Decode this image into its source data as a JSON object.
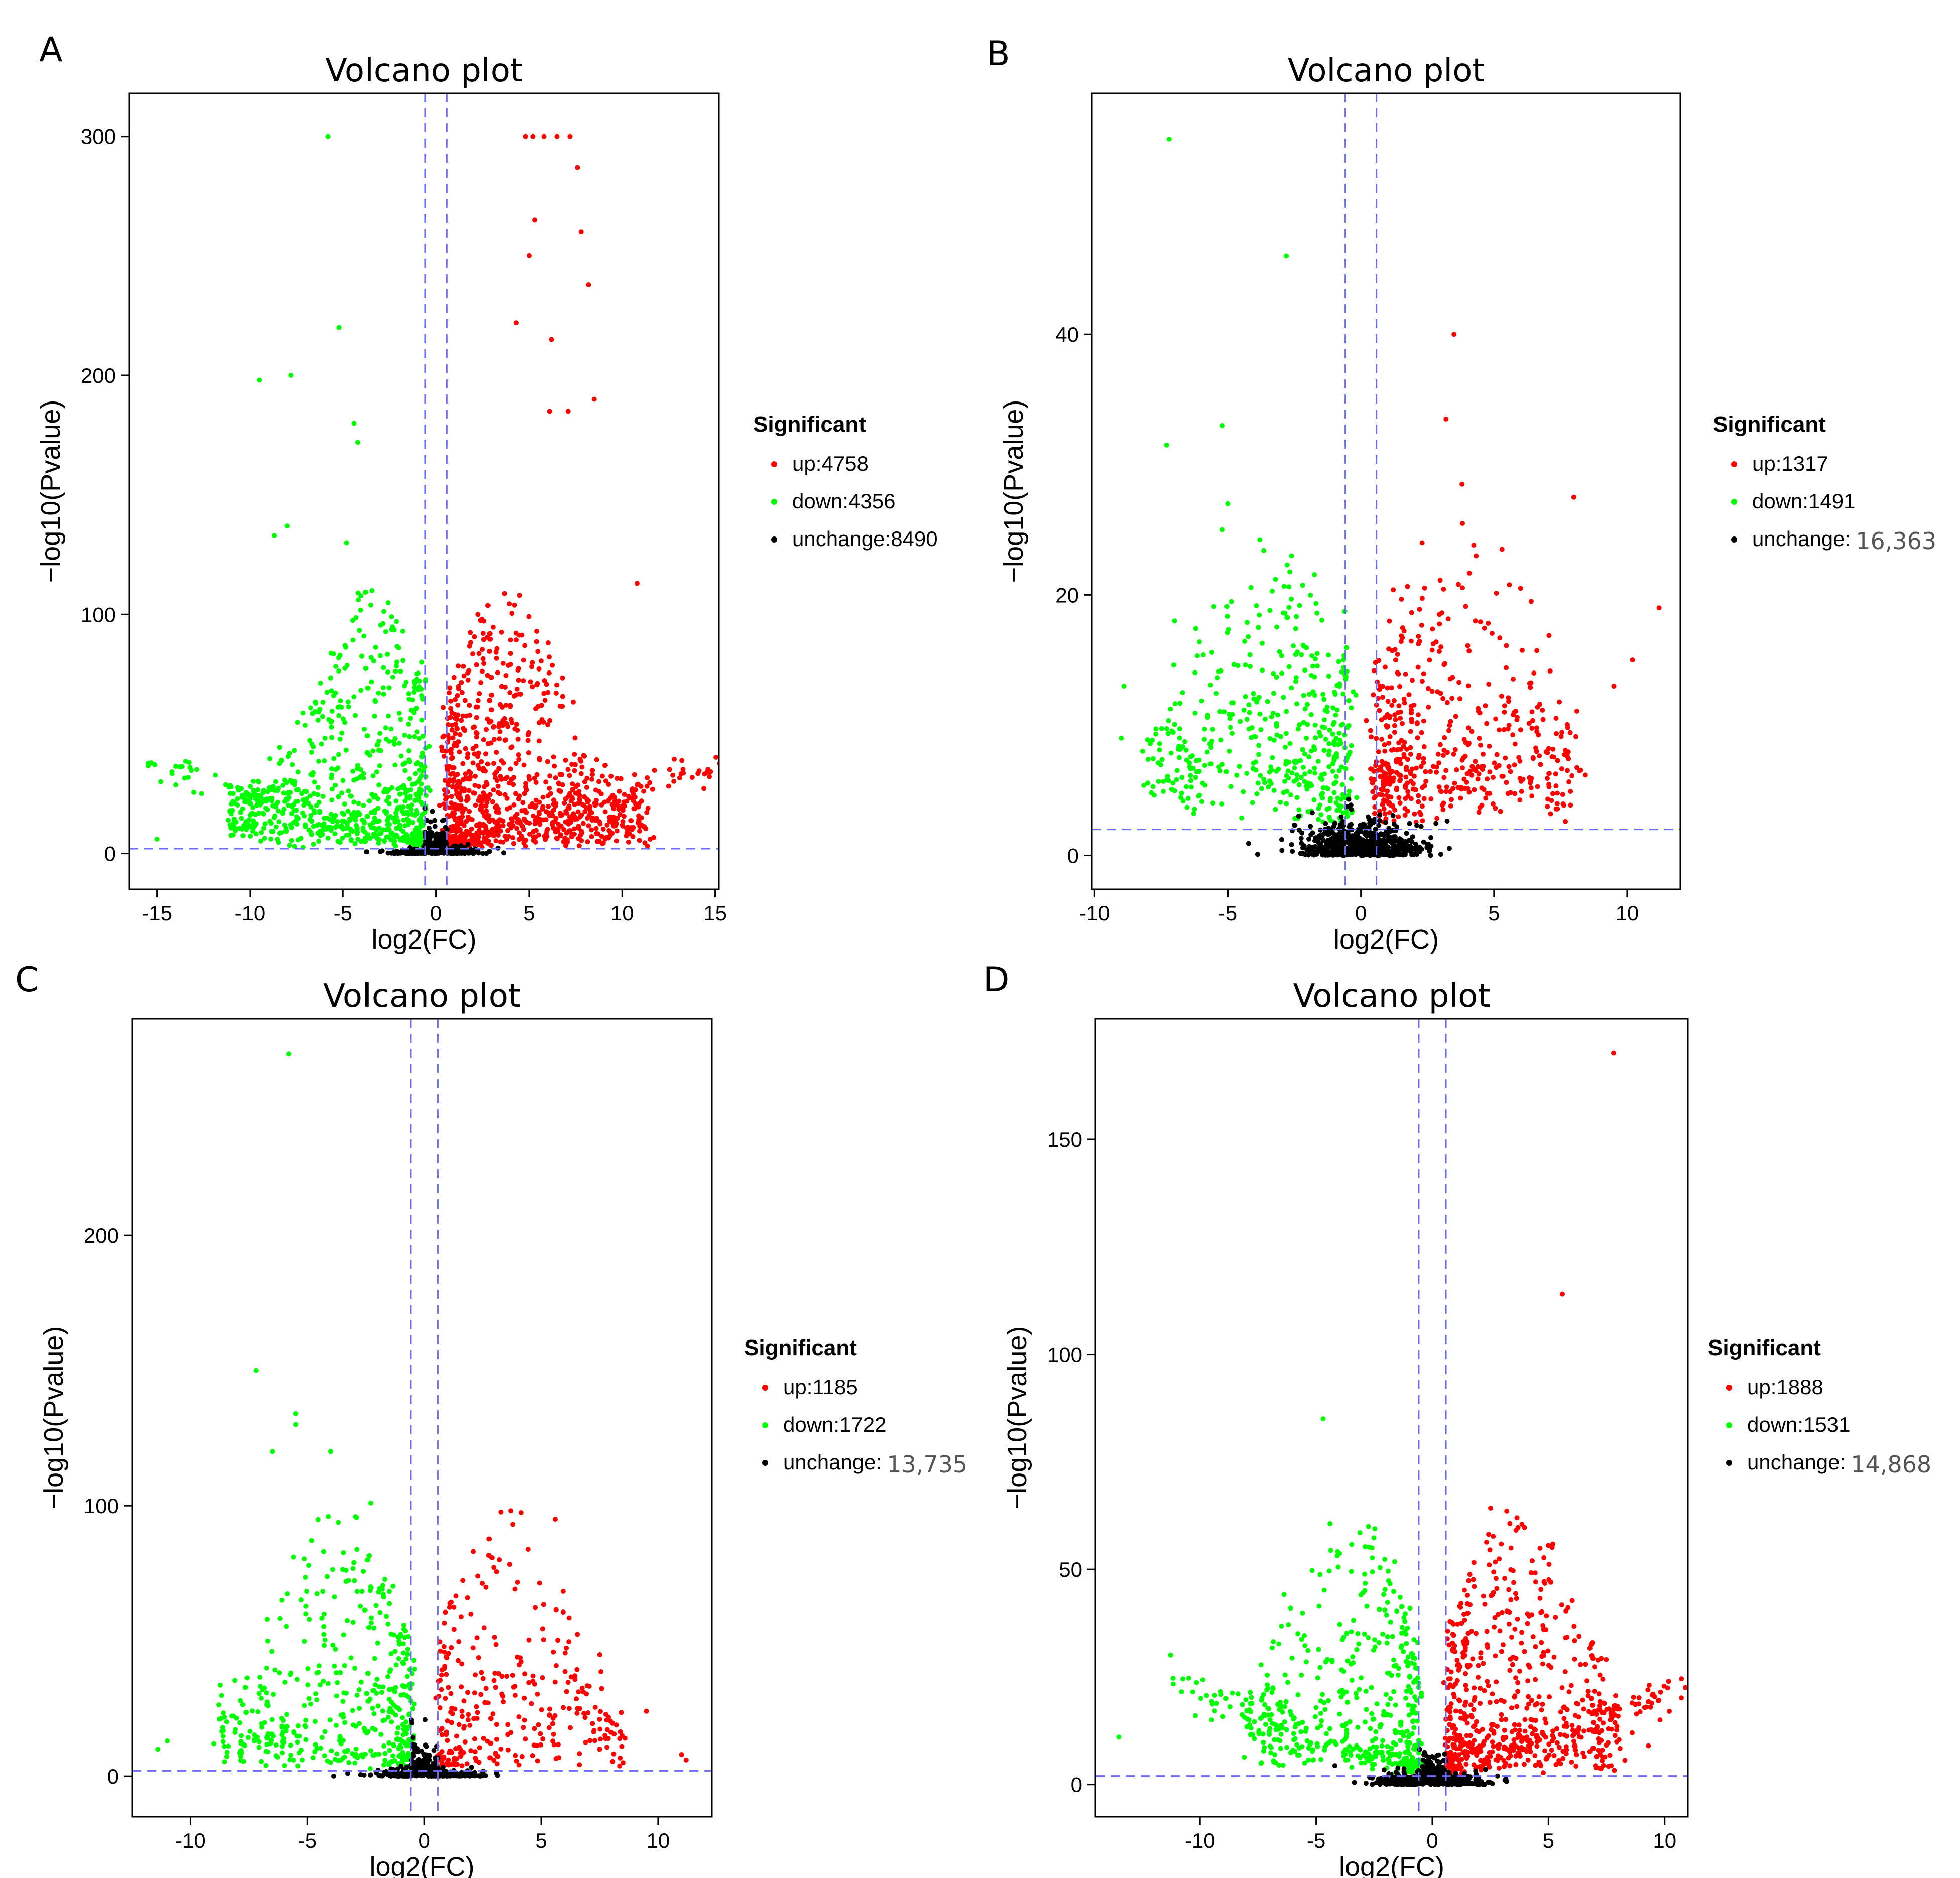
{
  "colors": {
    "up": "#ff0000",
    "down": "#00ff00",
    "unchange": "#000000",
    "threshold": "#6b6bff"
  },
  "chart_data": [
    {
      "type": "scatter",
      "panel": "A",
      "title": "Volcano plot",
      "xlabel": "log2(FC)",
      "ylabel": "−log10(Pvalue)",
      "xlim": [
        -16.5,
        15.2
      ],
      "ylim": [
        -15,
        318
      ],
      "xticks": [
        -15,
        -10,
        -5,
        0,
        5,
        10,
        15
      ],
      "yticks": [
        0,
        100,
        200,
        300
      ],
      "vlines": [
        -0.585,
        0.585
      ],
      "hline": 2,
      "legend": {
        "title": "Significant",
        "position": "right",
        "entries": [
          {
            "key": "up",
            "prefix": "up:",
            "count": "4758"
          },
          {
            "key": "down",
            "prefix": "down:",
            "count": "4356"
          },
          {
            "key": "unchange",
            "prefix": "unchange:",
            "count": "8490"
          }
        ]
      },
      "shape": {
        "xMax": 15,
        "yMax": 300,
        "upCount": 900,
        "downCount": 700,
        "unCount": 450,
        "arms": true,
        "noise": [
          1,
          0.25
        ],
        "outliers_up": [
          [
            4.8,
            300
          ],
          [
            5.2,
            300
          ],
          [
            5.8,
            300
          ],
          [
            6.5,
            300
          ],
          [
            7.2,
            300
          ],
          [
            7.6,
            287
          ],
          [
            7.8,
            260
          ],
          [
            5.3,
            265
          ],
          [
            5.0,
            250
          ],
          [
            4.3,
            222
          ],
          [
            6.2,
            215
          ],
          [
            8.2,
            238
          ],
          [
            8.5,
            190
          ],
          [
            7.1,
            185
          ],
          [
            6.1,
            185
          ],
          [
            10.8,
            113
          ]
        ],
        "outliers_down": [
          [
            -5.8,
            300
          ],
          [
            -5.2,
            220
          ],
          [
            -9.5,
            198
          ],
          [
            -7.8,
            200
          ],
          [
            -4.4,
            180
          ],
          [
            -4.2,
            172
          ],
          [
            -8.0,
            137
          ],
          [
            -8.7,
            133
          ],
          [
            -4.8,
            130
          ],
          [
            -14.8,
            30
          ],
          [
            -15.0,
            6
          ],
          [
            -12.6,
            25
          ]
        ]
      }
    },
    {
      "type": "scatter",
      "panel": "B",
      "title": "Volcano plot",
      "xlabel": "log2(FC)",
      "ylabel": "−log10(Pvalue)",
      "xlim": [
        -10.1,
        12.0
      ],
      "ylim": [
        -2.6,
        58.5
      ],
      "xticks": [
        -10,
        -5,
        0,
        5,
        10
      ],
      "yticks": [
        0,
        20,
        40
      ],
      "vlines": [
        -0.585,
        0.585
      ],
      "hline": 2,
      "legend": {
        "title": "Significant",
        "position": "right",
        "entries": [
          {
            "key": "up",
            "prefix": "up:",
            "count": "1317"
          },
          {
            "key": "down",
            "prefix": "down:",
            "count": "1491"
          },
          {
            "key": "unchange",
            "prefix": "unchange:",
            "count": "16,363"
          }
        ]
      },
      "shape": {
        "xMax": 10.5,
        "yMax": 55,
        "upCount": 500,
        "downCount": 450,
        "unCount": 700,
        "arms": false,
        "noise": [
          2.5,
          0.25
        ],
        "outliers_up": [
          [
            3.5,
            40
          ],
          [
            3.2,
            33.5
          ],
          [
            3.8,
            28.5
          ],
          [
            8.0,
            27.5
          ],
          [
            5.3,
            23.5
          ],
          [
            6.0,
            20.5
          ],
          [
            6.4,
            19.5
          ],
          [
            11.2,
            19
          ],
          [
            9.5,
            13
          ],
          [
            10.2,
            15
          ],
          [
            4.3,
            18
          ],
          [
            6.5,
            14
          ],
          [
            2.3,
            24
          ]
        ],
        "outliers_down": [
          [
            -7.2,
            55
          ],
          [
            -2.8,
            46
          ],
          [
            -5.2,
            33
          ],
          [
            -7.3,
            31.5
          ],
          [
            -5.0,
            27
          ],
          [
            -5.2,
            25
          ],
          [
            -2.6,
            23
          ],
          [
            -8.9,
            13
          ],
          [
            -9.0,
            9
          ],
          [
            -8.2,
            8
          ],
          [
            -7.0,
            18
          ],
          [
            -6.7,
            12.5
          ]
        ]
      }
    },
    {
      "type": "scatter",
      "panel": "C",
      "title": "Volcano plot",
      "xlabel": "log2(FC)",
      "ylabel": "−log10(Pvalue)",
      "xlim": [
        -12.5,
        12.3
      ],
      "ylim": [
        -15,
        280
      ],
      "xticks": [
        -10,
        -5,
        0,
        5,
        10
      ],
      "yticks": [
        0,
        100,
        200
      ],
      "vlines": [
        -0.585,
        0.585
      ],
      "hline": 2,
      "legend": {
        "title": "Significant",
        "position": "right",
        "entries": [
          {
            "key": "up",
            "prefix": "up:",
            "count": "1185"
          },
          {
            "key": "down",
            "prefix": "down:",
            "count": "1722"
          },
          {
            "key": "unchange",
            "prefix": "unchange:",
            "count": "13,735"
          }
        ]
      },
      "shape": {
        "xMax": 11.5,
        "yMax": 265,
        "upCount": 300,
        "downCount": 450,
        "unCount": 400,
        "arms": false,
        "noise": [
          2,
          0.12
        ],
        "outliers_up": [
          [
            5.6,
            95
          ],
          [
            3.2,
            80
          ],
          [
            2.0,
            60
          ],
          [
            9.5,
            24
          ],
          [
            11.0,
            8
          ],
          [
            11.2,
            6
          ],
          [
            6.2,
            25
          ],
          [
            7.5,
            10
          ],
          [
            8.5,
            5
          ]
        ],
        "outliers_down": [
          [
            -5.8,
            267
          ],
          [
            -7.2,
            150
          ],
          [
            -5.5,
            134
          ],
          [
            -5.5,
            130
          ],
          [
            -6.5,
            120
          ],
          [
            -4.0,
            120
          ],
          [
            -2.3,
            101
          ],
          [
            -4.1,
            96
          ],
          [
            -4.3,
            83
          ],
          [
            -5.6,
            81
          ],
          [
            -3.0,
            79
          ],
          [
            -6.7,
            50
          ],
          [
            -11.0,
            13
          ],
          [
            -11.4,
            10
          ],
          [
            -9.0,
            12
          ]
        ]
      }
    },
    {
      "type": "scatter",
      "panel": "D",
      "title": "Volcano plot",
      "xlabel": "log2(FC)",
      "ylabel": "−log10(Pvalue)",
      "xlim": [
        -14.5,
        11.0
      ],
      "ylim": [
        -7.5,
        178
      ],
      "xticks": [
        -10,
        -5,
        0,
        5,
        10
      ],
      "yticks": [
        0,
        50,
        100,
        150
      ],
      "vlines": [
        -0.585,
        0.585
      ],
      "hline": 2,
      "legend": {
        "title": "Significant",
        "position": "right",
        "entries": [
          {
            "key": "up",
            "prefix": "up:",
            "count": "1888"
          },
          {
            "key": "down",
            "prefix": "down:",
            "count": "1531"
          },
          {
            "key": "unchange",
            "prefix": "unchange:",
            "count": "14,868"
          }
        ]
      },
      "shape": {
        "xMax": 10.5,
        "yMax": 170,
        "upCount": 600,
        "downCount": 450,
        "unCount": 550,
        "arms": true,
        "noise": [
          2,
          0.15
        ],
        "outliers_up": [
          [
            7.8,
            170
          ],
          [
            5.6,
            114
          ],
          [
            4.3,
            52
          ],
          [
            5.1,
            47
          ],
          [
            1.8,
            46
          ],
          [
            3.0,
            40
          ],
          [
            4.8,
            30
          ],
          [
            10.2,
            17
          ],
          [
            9.8,
            15
          ],
          [
            8.6,
            12
          ],
          [
            9.3,
            9
          ]
        ],
        "outliers_down": [
          [
            -4.7,
            85
          ],
          [
            -2.6,
            55
          ],
          [
            -6.1,
            41
          ],
          [
            -13.5,
            11
          ],
          [
            -10.2,
            16
          ],
          [
            -9.5,
            15
          ],
          [
            -2.3,
            33
          ],
          [
            -3.5,
            28
          ],
          [
            -6.0,
            8
          ],
          [
            -5.5,
            5
          ]
        ]
      }
    }
  ]
}
